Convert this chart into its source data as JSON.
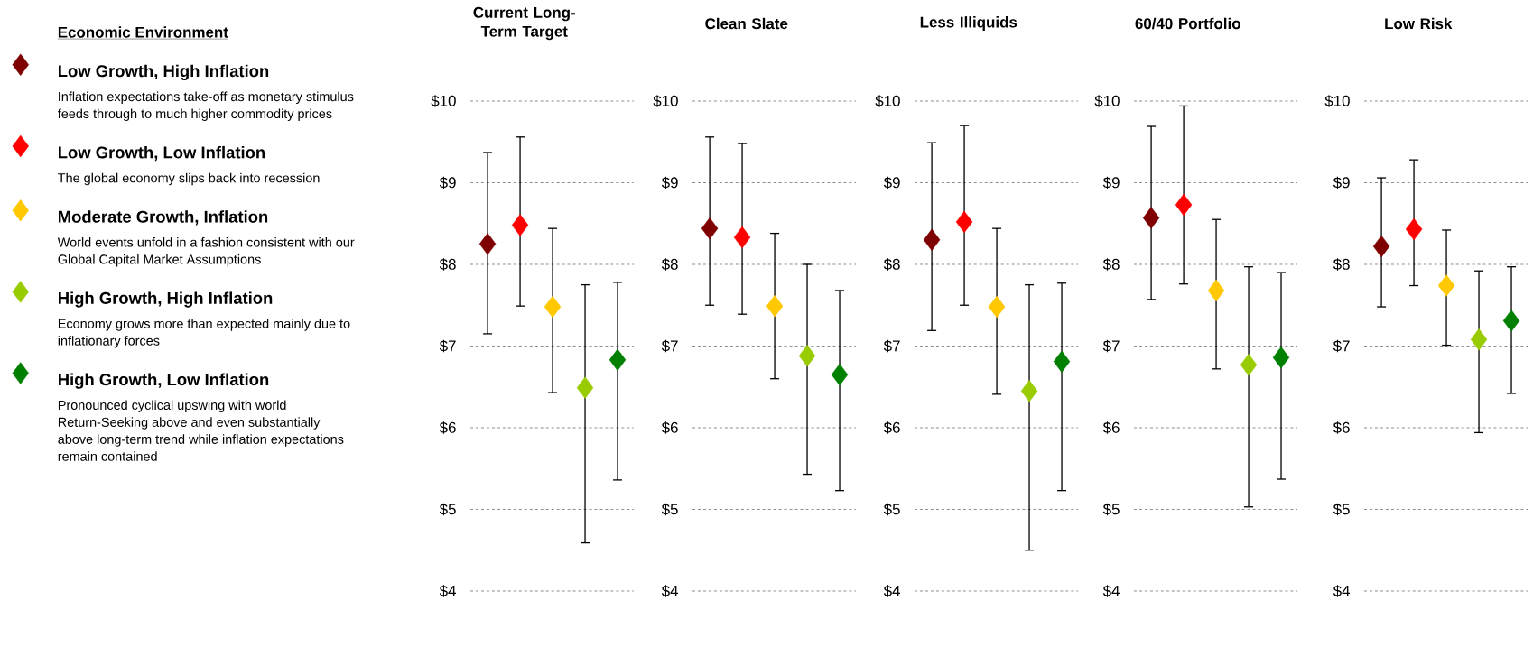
{
  "chart_data": [
    {
      "type": "scatter",
      "title": "Current Long-Term Target",
      "legend_title": "Economic Environment",
      "legend": "left",
      "marker": "diamond",
      "grid": "y",
      "categories": [
        null,
        null,
        null,
        null,
        null
      ],
      "ylim": [
        4,
        10
      ],
      "yticks": [
        {
          "value": 4,
          "label": "$4"
        },
        {
          "value": 5,
          "label": "$5"
        },
        {
          "value": 6,
          "label": "$6"
        },
        {
          "value": 7,
          "label": "$7"
        },
        {
          "value": 8,
          "label": "$8"
        },
        {
          "value": 9,
          "label": "$9"
        },
        {
          "value": 10,
          "label": "$10"
        }
      ],
      "annotations": [
        "Inflation expectations take-off as monetary stimulus feeds through to much higher commodity prices",
        "The global economy slips back into recession",
        "World events unfold in a fashion consistent with our Global Capital Market Assumptions",
        "Economy grows more than expected mainly due to inflationary forces",
        "Pronounced cyclical upswing with world Return-Seeking above and even substantially above long-term trend while inflation expectations remain contained"
      ],
      "series": [
        {
          "name": "Low Growth, High Inflation",
          "color": "#7f0000",
          "values": [
            8.25,
            null,
            null,
            null,
            null
          ],
          "errors": [
            [
              7.15,
              9.37
            ],
            null,
            null,
            null,
            null
          ]
        },
        {
          "name": "Low Growth, Low Inflation",
          "color": "#ff0000",
          "values": [
            null,
            8.48,
            null,
            null,
            null
          ],
          "errors": [
            null,
            [
              7.49,
              9.56
            ],
            null,
            null,
            null
          ]
        },
        {
          "name": "Moderate Growth, Inflation",
          "color": "#ffc800",
          "values": [
            null,
            null,
            7.48,
            null,
            null
          ],
          "errors": [
            null,
            null,
            [
              6.43,
              8.44
            ],
            null,
            null
          ]
        },
        {
          "name": "High Growth, High Inflation",
          "color": "#99cc00",
          "values": [
            null,
            null,
            null,
            6.49,
            null
          ],
          "errors": [
            null,
            null,
            null,
            [
              4.59,
              7.75
            ],
            null
          ]
        },
        {
          "name": "High Growth, Low Inflation",
          "color": "#008000",
          "values": [
            null,
            null,
            null,
            null,
            6.83
          ],
          "errors": [
            null,
            null,
            null,
            null,
            [
              5.36,
              7.78
            ]
          ]
        }
      ]
    },
    {
      "type": "scatter",
      "title": "Clean Slate",
      "marker": "diamond",
      "grid": "y",
      "categories": [
        null,
        null,
        null,
        null,
        null
      ],
      "ylim": [
        4,
        10
      ],
      "yticks": [
        {
          "value": 4,
          "label": "$4"
        },
        {
          "value": 5,
          "label": "$5"
        },
        {
          "value": 6,
          "label": "$6"
        },
        {
          "value": 7,
          "label": "$7"
        },
        {
          "value": 8,
          "label": "$8"
        },
        {
          "value": 9,
          "label": "$9"
        },
        {
          "value": 10,
          "label": "$10"
        }
      ],
      "series": [
        {
          "color": "#7f0000",
          "values": [
            8.44,
            null,
            null,
            null,
            null
          ],
          "errors": [
            [
              7.5,
              9.56
            ],
            null,
            null,
            null,
            null
          ]
        },
        {
          "color": "#ff0000",
          "values": [
            null,
            8.33,
            null,
            null,
            null
          ],
          "errors": [
            null,
            [
              7.39,
              9.48
            ],
            null,
            null,
            null
          ]
        },
        {
          "color": "#ffc800",
          "values": [
            null,
            null,
            7.49,
            null,
            null
          ],
          "errors": [
            null,
            null,
            [
              6.6,
              8.38
            ],
            null,
            null
          ]
        },
        {
          "color": "#99cc00",
          "values": [
            null,
            null,
            null,
            6.88,
            null
          ],
          "errors": [
            null,
            null,
            null,
            [
              5.43,
              8.0
            ],
            null
          ]
        },
        {
          "color": "#008000",
          "values": [
            null,
            null,
            null,
            null,
            6.65
          ],
          "errors": [
            null,
            null,
            null,
            null,
            [
              5.23,
              7.68
            ]
          ]
        }
      ]
    },
    {
      "type": "scatter",
      "title": "Less Illiquids",
      "marker": "diamond",
      "grid": "y",
      "categories": [
        null,
        null,
        null,
        null,
        null
      ],
      "ylim": [
        4,
        10
      ],
      "yticks": [
        {
          "value": 4,
          "label": "$4"
        },
        {
          "value": 5,
          "label": "$5"
        },
        {
          "value": 6,
          "label": "$6"
        },
        {
          "value": 7,
          "label": "$7"
        },
        {
          "value": 8,
          "label": "$8"
        },
        {
          "value": 9,
          "label": "$9"
        },
        {
          "value": 10,
          "label": "$10"
        }
      ],
      "series": [
        {
          "color": "#7f0000",
          "values": [
            8.3,
            null,
            null,
            null,
            null
          ],
          "errors": [
            [
              7.19,
              9.49
            ],
            null,
            null,
            null,
            null
          ]
        },
        {
          "color": "#ff0000",
          "values": [
            null,
            8.52,
            null,
            null,
            null
          ],
          "errors": [
            null,
            [
              7.5,
              9.7
            ],
            null,
            null,
            null
          ]
        },
        {
          "color": "#ffc800",
          "values": [
            null,
            null,
            7.48,
            null,
            null
          ],
          "errors": [
            null,
            null,
            [
              6.41,
              8.44
            ],
            null,
            null
          ]
        },
        {
          "color": "#99cc00",
          "values": [
            null,
            null,
            null,
            6.45,
            null
          ],
          "errors": [
            null,
            null,
            null,
            [
              4.5,
              7.75
            ],
            null
          ]
        },
        {
          "color": "#008000",
          "values": [
            null,
            null,
            null,
            null,
            6.81
          ],
          "errors": [
            null,
            null,
            null,
            null,
            [
              5.23,
              7.77
            ]
          ]
        }
      ]
    },
    {
      "type": "scatter",
      "title": "60/40 Portfolio",
      "marker": "diamond",
      "grid": "y",
      "categories": [
        null,
        null,
        null,
        null,
        null
      ],
      "ylim": [
        4,
        10
      ],
      "yticks": [
        {
          "value": 4,
          "label": "$4"
        },
        {
          "value": 5,
          "label": "$5"
        },
        {
          "value": 6,
          "label": "$6"
        },
        {
          "value": 7,
          "label": "$7"
        },
        {
          "value": 8,
          "label": "$8"
        },
        {
          "value": 9,
          "label": "$9"
        },
        {
          "value": 10,
          "label": "$10"
        }
      ],
      "series": [
        {
          "color": "#7f0000",
          "values": [
            8.57,
            null,
            null,
            null,
            null
          ],
          "errors": [
            [
              7.57,
              9.69
            ],
            null,
            null,
            null,
            null
          ]
        },
        {
          "color": "#ff0000",
          "values": [
            null,
            8.73,
            null,
            null,
            null
          ],
          "errors": [
            null,
            [
              7.76,
              9.94
            ],
            null,
            null,
            null
          ]
        },
        {
          "color": "#ffc800",
          "values": [
            null,
            null,
            7.68,
            null,
            null
          ],
          "errors": [
            null,
            null,
            [
              6.72,
              8.55
            ],
            null,
            null
          ]
        },
        {
          "color": "#99cc00",
          "values": [
            null,
            null,
            null,
            6.77,
            null
          ],
          "errors": [
            null,
            null,
            null,
            [
              5.03,
              7.97
            ],
            null
          ]
        },
        {
          "color": "#008000",
          "values": [
            null,
            null,
            null,
            null,
            6.86
          ],
          "errors": [
            null,
            null,
            null,
            null,
            [
              5.37,
              7.9
            ]
          ]
        }
      ]
    },
    {
      "type": "scatter",
      "title": "Low Risk",
      "marker": "diamond",
      "grid": "y",
      "categories": [
        null,
        null,
        null,
        null,
        null
      ],
      "ylim": [
        4,
        10
      ],
      "yticks": [
        {
          "value": 4,
          "label": "$4"
        },
        {
          "value": 5,
          "label": "$5"
        },
        {
          "value": 6,
          "label": "$6"
        },
        {
          "value": 7,
          "label": "$7"
        },
        {
          "value": 8,
          "label": "$8"
        },
        {
          "value": 9,
          "label": "$9"
        },
        {
          "value": 10,
          "label": "$10"
        }
      ],
      "series": [
        {
          "color": "#7f0000",
          "values": [
            8.22,
            null,
            null,
            null,
            null
          ],
          "errors": [
            [
              7.48,
              9.06
            ],
            null,
            null,
            null,
            null
          ]
        },
        {
          "color": "#ff0000",
          "values": [
            null,
            8.43,
            null,
            null,
            null
          ],
          "errors": [
            null,
            [
              7.74,
              9.28
            ],
            null,
            null,
            null
          ]
        },
        {
          "color": "#ffc800",
          "values": [
            null,
            null,
            7.74,
            null,
            null
          ],
          "errors": [
            null,
            null,
            [
              7.01,
              8.42
            ],
            null,
            null
          ]
        },
        {
          "color": "#99cc00",
          "values": [
            null,
            null,
            null,
            7.08,
            null
          ],
          "errors": [
            null,
            null,
            null,
            [
              5.94,
              7.92
            ],
            null
          ]
        },
        {
          "color": "#008000",
          "values": [
            null,
            null,
            null,
            null,
            7.31
          ],
          "errors": [
            null,
            null,
            null,
            null,
            [
              6.42,
              7.97
            ]
          ]
        }
      ]
    }
  ]
}
